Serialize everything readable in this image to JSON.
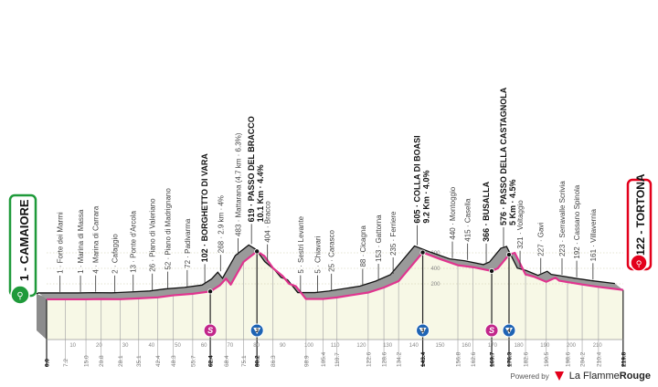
{
  "chart_data": {
    "type": "area",
    "xlim": [
      0,
      219.8
    ],
    "elevation_gridlines": [
      "200",
      "400",
      "600"
    ],
    "x_ticks": [
      "10",
      "20",
      "30",
      "40",
      "50",
      "60",
      "70",
      "80",
      "90",
      "100",
      "110",
      "120",
      "130",
      "140",
      "150",
      "160",
      "170",
      "180",
      "190",
      "200",
      "210"
    ],
    "profile": [
      [
        0,
        1
      ],
      [
        7.2,
        1
      ],
      [
        15,
        1
      ],
      [
        20.8,
        4
      ],
      [
        28.1,
        2
      ],
      [
        35.1,
        13
      ],
      [
        42.4,
        26
      ],
      [
        48.3,
        52
      ],
      [
        55.7,
        72
      ],
      [
        62.4,
        102
      ],
      [
        66,
        180
      ],
      [
        68.4,
        268
      ],
      [
        70.2,
        190
      ],
      [
        75.1,
        483
      ],
      [
        80.2,
        619
      ],
      [
        83,
        560
      ],
      [
        86.3,
        404
      ],
      [
        90,
        300
      ],
      [
        92.5,
        200
      ],
      [
        95,
        170
      ],
      [
        98.9,
        5
      ],
      [
        105.4,
        5
      ],
      [
        110.7,
        25
      ],
      [
        122.6,
        88
      ],
      [
        128.6,
        153
      ],
      [
        134.2,
        235
      ],
      [
        143.4,
        605
      ],
      [
        150,
        520
      ],
      [
        156.8,
        440
      ],
      [
        162.6,
        415
      ],
      [
        169.7,
        366
      ],
      [
        172,
        400
      ],
      [
        176.3,
        576
      ],
      [
        178.5,
        600
      ],
      [
        182.6,
        321
      ],
      [
        186,
        290
      ],
      [
        190.5,
        227
      ],
      [
        194,
        280
      ],
      [
        195.5,
        240
      ],
      [
        198.6,
        223
      ],
      [
        204.2,
        192
      ],
      [
        210.4,
        161
      ],
      [
        219.8,
        122
      ]
    ],
    "distances": [
      {
        "km": "0.0",
        "v": 0,
        "major": true
      },
      {
        "km": "7.2",
        "v": 7.2
      },
      {
        "km": "15.0",
        "v": 15
      },
      {
        "km": "20.8",
        "v": 20.8
      },
      {
        "km": "28.1",
        "v": 28.1
      },
      {
        "km": "35.1",
        "v": 35.1
      },
      {
        "km": "42.4",
        "v": 42.4
      },
      {
        "km": "48.3",
        "v": 48.3
      },
      {
        "km": "55.7",
        "v": 55.7
      },
      {
        "km": "62.4",
        "v": 62.4,
        "major": true
      },
      {
        "km": "68.4",
        "v": 68.4
      },
      {
        "km": "75.1",
        "v": 75.1
      },
      {
        "km": "80.2",
        "v": 80.2,
        "major": true
      },
      {
        "km": "86.3",
        "v": 86.3
      },
      {
        "km": "98.9",
        "v": 98.9
      },
      {
        "km": "105.4",
        "v": 105.4
      },
      {
        "km": "110.7",
        "v": 110.7
      },
      {
        "km": "122.6",
        "v": 122.6
      },
      {
        "km": "128.6",
        "v": 128.6
      },
      {
        "km": "134.2",
        "v": 134.2
      },
      {
        "km": "143.4",
        "v": 143.4,
        "major": true
      },
      {
        "km": "156.8",
        "v": 156.8
      },
      {
        "km": "162.6",
        "v": 162.6
      },
      {
        "km": "169.7",
        "v": 169.7,
        "major": true
      },
      {
        "km": "176.3",
        "v": 176.3,
        "major": true
      },
      {
        "km": "182.6",
        "v": 182.6
      },
      {
        "km": "190.5",
        "v": 190.5
      },
      {
        "km": "198.6",
        "v": 198.6
      },
      {
        "km": "204.2",
        "v": 204.2
      },
      {
        "km": "210.4",
        "v": 210.4
      },
      {
        "km": "219.8",
        "v": 219.8,
        "major": true
      }
    ],
    "places": [
      {
        "km": 7.2,
        "text": "1 · Forte dei Marmi"
      },
      {
        "km": 15.0,
        "text": "1 · Marina di Massa"
      },
      {
        "km": 20.8,
        "text": "4 · Marina di Carrara"
      },
      {
        "km": 28.1,
        "text": "2 · Cafaggio"
      },
      {
        "km": 35.1,
        "text": "13 · Ponte d'Arcola"
      },
      {
        "km": 42.4,
        "text": "26 · Piano di Valeriano"
      },
      {
        "km": 48.3,
        "text": "52 · Piano di Madrignano"
      },
      {
        "km": 55.7,
        "text": "72 · Padivarma"
      },
      {
        "km": 62.4,
        "text": "102 · BORGHETTO DI VARA",
        "major": true
      },
      {
        "km": 68.4,
        "text": "268 · 2.9 km · 4%"
      },
      {
        "km": 75.1,
        "text": "483 · Mattarana (4.7 km · 6.3%)"
      },
      {
        "km": 80.2,
        "text": "619 · PASSO DEL BRACCO",
        "sub": "10.1 Km · 4.4%",
        "major": true
      },
      {
        "km": 86.3,
        "text": "404 · Bracco"
      },
      {
        "km": 98.9,
        "text": "5 · Sestri Levante"
      },
      {
        "km": 105.4,
        "text": "5 · Chiavari"
      },
      {
        "km": 110.7,
        "text": "25 · Carasco"
      },
      {
        "km": 122.6,
        "text": "88 · Cicagna"
      },
      {
        "km": 128.6,
        "text": "153 · Gattorna"
      },
      {
        "km": 134.2,
        "text": "235 · Ferriere"
      },
      {
        "km": 143.4,
        "text": "605 · COLLA DI BOASI",
        "sub": "9.2 Km · 4.0%",
        "major": true
      },
      {
        "km": 156.8,
        "text": "440 · Montoggio"
      },
      {
        "km": 162.6,
        "text": "415 · Casella"
      },
      {
        "km": 169.7,
        "text": "366 · BUSALLA",
        "major": true
      },
      {
        "km": 176.3,
        "text": "576 · PASSO DELLA CASTAGNOLA",
        "sub": "5 Km · 4.5%",
        "major": true
      },
      {
        "km": 182.6,
        "text": "321 · Voltaggio"
      },
      {
        "km": 190.5,
        "text": "227 · Gavi"
      },
      {
        "km": 198.6,
        "text": "223 · Serravalle Scrivia"
      },
      {
        "km": 204.2,
        "text": "192 · Cassano Spinola"
      },
      {
        "km": 210.4,
        "text": "161 · Villavernia"
      }
    ],
    "markers": [
      {
        "km": 62.4,
        "type": "sprint",
        "label": "S",
        "color": "#c2278a"
      },
      {
        "km": 80.2,
        "type": "kom",
        "label": "3",
        "color": "#1e64b4"
      },
      {
        "km": 143.4,
        "type": "kom",
        "label": "3",
        "color": "#1e64b4"
      },
      {
        "km": 169.7,
        "type": "sprint",
        "label": "S",
        "color": "#c2278a"
      },
      {
        "km": 176.3,
        "type": "kom",
        "label": "4",
        "color": "#1e64b4"
      }
    ],
    "colors": {
      "profile_line": "#e0358f",
      "band": "#9a9a9a",
      "fill": "#f7f8e6",
      "start": "#1f9a3a",
      "finish": "#e3001b"
    }
  },
  "start": {
    "label": "1 - CAMAIORE",
    "icon": "bicycle-icon"
  },
  "finish": {
    "label": "122 - TORTONA",
    "icon": "bicycle-icon"
  },
  "footer": {
    "powered": "Powered by",
    "brand1": "La Flamme",
    "brand2": "Rouge"
  }
}
